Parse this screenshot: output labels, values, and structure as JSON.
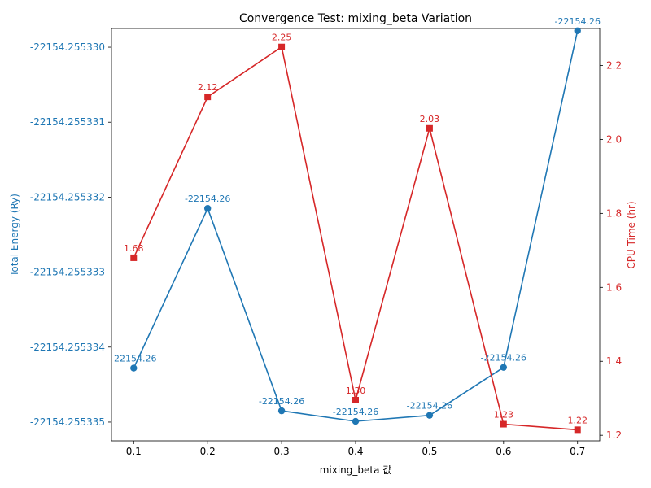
{
  "chart_data": {
    "type": "line",
    "title": "Convergence Test: mixing_beta Variation",
    "xlabel": "mixing_beta 값",
    "ylabel_left": "Total Energy (Ry)",
    "ylabel_right": "CPU Time (hr)",
    "x": [
      0.1,
      0.2,
      0.3,
      0.4,
      0.5,
      0.6,
      0.7
    ],
    "x_ticks": [
      "0.1",
      "0.2",
      "0.3",
      "0.4",
      "0.5",
      "0.6",
      "0.7"
    ],
    "xlim": [
      0.07,
      0.73
    ],
    "y_left_ticks": [
      "-22154.255335",
      "-22154.255334",
      "-22154.255333",
      "-22154.255332",
      "-22154.255331",
      "-22154.255330"
    ],
    "y_left_tick_values": [
      -5.0,
      -4.0,
      -3.0,
      -2.0,
      -1.0,
      0.0
    ],
    "y_left_lim": [
      -5.25,
      0.25
    ],
    "y_right_ticks": [
      "1.2",
      "1.4",
      "1.6",
      "1.8",
      "2.0",
      "2.2"
    ],
    "y_right_tick_values": [
      1.2,
      1.4,
      1.6,
      1.8,
      2.0,
      2.2
    ],
    "y_right_lim": [
      1.185,
      2.3
    ],
    "grid": false,
    "series": [
      {
        "axis": "left",
        "color": "#1f77b4",
        "marker": "circle",
        "values": [
          -4.28,
          -2.15,
          -4.85,
          -4.99,
          -4.91,
          -4.27,
          0.22
        ],
        "labels": [
          "-22154.26",
          "-22154.26",
          "-22154.26",
          "-22154.26",
          "-22154.26",
          "-22154.26",
          "-22154.26"
        ]
      },
      {
        "axis": "right",
        "color": "#d62728",
        "marker": "square",
        "values": [
          1.68,
          2.115,
          2.25,
          1.295,
          2.03,
          1.23,
          1.215
        ],
        "labels": [
          "1.68",
          "2.12",
          "2.25",
          "1.30",
          "2.03",
          "1.23",
          "1.22"
        ]
      }
    ]
  }
}
